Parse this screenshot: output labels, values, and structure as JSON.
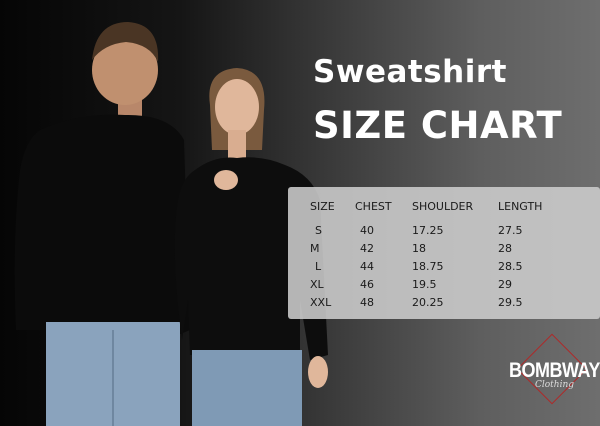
{
  "title": {
    "line1": "Sweatshirt",
    "line2": "SIZE CHART"
  },
  "table": {
    "headers": [
      "SIZE",
      "CHEST",
      "SHOULDER",
      "LENGTH"
    ],
    "rows": [
      [
        "S",
        "40",
        "17.25",
        "27.5"
      ],
      [
        "M",
        "42",
        "18",
        "28"
      ],
      [
        "L",
        "44",
        "18.75",
        "28.5"
      ],
      [
        "XL",
        "46",
        "19.5",
        "29"
      ],
      [
        "XXL",
        "48",
        "20.25",
        "29.5"
      ]
    ]
  },
  "logo": {
    "brand": "BOMBWAY",
    "sub": "Clothing"
  },
  "colors": {
    "logo_accent": "#b02828",
    "sweatshirt": "#0d0d0d",
    "jeans": "#7f9ab5"
  }
}
